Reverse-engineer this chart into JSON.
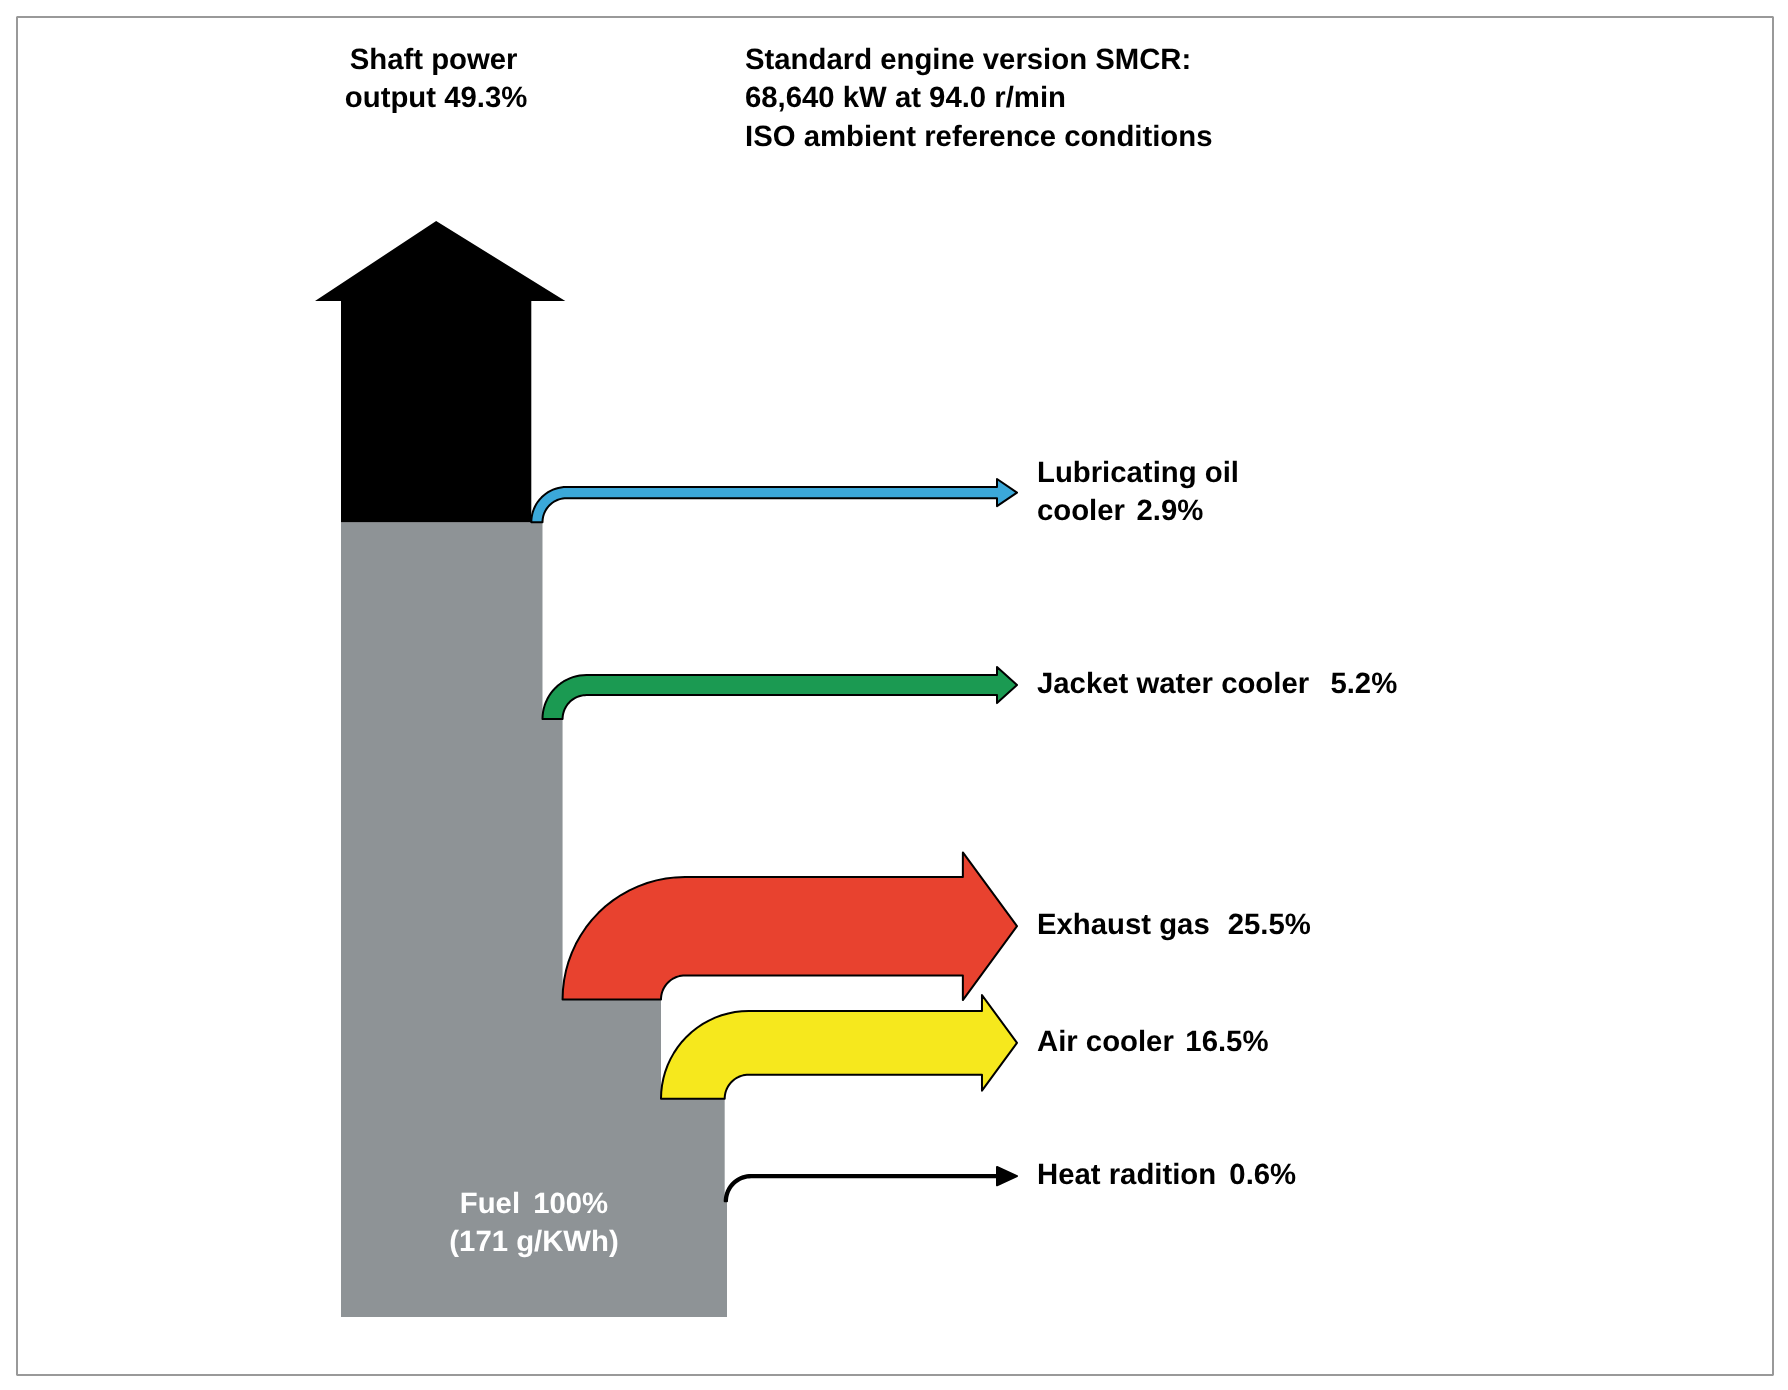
{
  "chart_data": {
    "type": "other",
    "title": "Standard engine version SMCR:\n68,640 kW at 94.0 r/min\nISO ambient reference conditions",
    "categories": [
      "Fuel",
      "Shaft power\noutput",
      "Lubricating oil\ncooler",
      "Jacket water cooler",
      "Exhaust gas",
      "Air cooler",
      "Heat radition"
    ],
    "values": [
      100,
      49.3,
      2.9,
      5.2,
      25.5,
      16.5,
      0.6
    ],
    "value_labels": [
      "100%",
      "49.3%",
      "2.9%",
      "5.2%",
      "25.5%",
      "16.5%",
      "0.6%"
    ],
    "colors": [
      "#8e9396",
      "#000000",
      "#3ba8d9",
      "#1b9a52",
      "#e8422f",
      "#f6e81d",
      "#000000"
    ],
    "annotations": [
      "(171 g/KWh)"
    ]
  }
}
